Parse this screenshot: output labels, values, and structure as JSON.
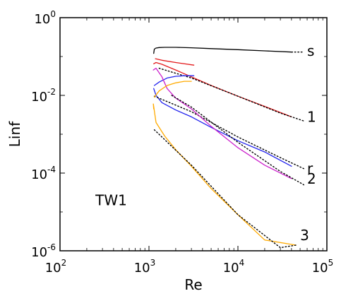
{
  "chart_data": {
    "type": "line",
    "xlabel": "Re",
    "ylabel": "Linf",
    "xscale": "log",
    "yscale": "log",
    "xlim": [
      100,
      100000
    ],
    "ylim": [
      1e-06,
      1
    ],
    "grid": false,
    "x_ticks": [
      {
        "base": "10",
        "exp": "2"
      },
      {
        "base": "10",
        "exp": "3"
      },
      {
        "base": "10",
        "exp": "4"
      },
      {
        "base": "10",
        "exp": "5"
      }
    ],
    "y_ticks": [
      {
        "base": "10",
        "exp": "-6"
      },
      {
        "base": "10",
        "exp": "-4"
      },
      {
        "base": "10",
        "exp": "-2"
      },
      {
        "base": "10",
        "exp": "0"
      }
    ],
    "annotations": [
      {
        "text": "TW1",
        "x": 250,
        "y": 2e-05
      },
      {
        "text": "s",
        "x": 60000,
        "y": 0.14
      },
      {
        "text": "1",
        "x": 60000,
        "y": 0.0028
      },
      {
        "text": "r",
        "x": 60000,
        "y": 0.00013
      },
      {
        "text": "2",
        "x": 60000,
        "y": 7.08e-05
      },
      {
        "text": "3",
        "x": 50000,
        "y": 2.5e-06
      }
    ],
    "series": [
      {
        "color": "#000000",
        "style": "solid",
        "x": [
          1130,
          1150,
          1200,
          1300,
          1500,
          2000,
          3000,
          5000,
          10000,
          20000,
          40000
        ],
        "y": [
          0.12,
          0.155,
          0.165,
          0.17,
          0.172,
          0.172,
          0.168,
          0.16,
          0.15,
          0.14,
          0.13
        ]
      },
      {
        "color": "#000000",
        "style": "dotted",
        "x": [
          40000,
          55000
        ],
        "y": [
          0.13,
          0.13
        ]
      },
      {
        "color": "#e31a1c",
        "style": "solid",
        "x": [
          1180,
          1400,
          2000,
          3200
        ],
        "y": [
          0.088,
          0.08,
          0.07,
          0.06
        ]
      },
      {
        "color": "#e31a1c",
        "style": "solid",
        "x": [
          1130,
          1200,
          1400,
          2000,
          3000,
          5000,
          10000,
          20000,
          40000
        ],
        "y": [
          0.065,
          0.07,
          0.063,
          0.045,
          0.03,
          0.018,
          0.0095,
          0.0052,
          0.0028
        ]
      },
      {
        "color": "#000000",
        "style": "dotted",
        "x": [
          1300,
          3000,
          10000,
          30000,
          55000
        ],
        "y": [
          0.05,
          0.028,
          0.0095,
          0.0035,
          0.0022
        ]
      },
      {
        "color": "#2222ee",
        "style": "solid",
        "x": [
          1150,
          1300,
          1600,
          2000,
          2500,
          3200
        ],
        "y": [
          0.018,
          0.022,
          0.028,
          0.031,
          0.032,
          0.032
        ]
      },
      {
        "color": "#2222ee",
        "style": "solid",
        "x": [
          1130,
          1200,
          1400,
          2000,
          3000,
          5000,
          10000,
          20000,
          40000
        ],
        "y": [
          0.015,
          0.01,
          0.0065,
          0.0042,
          0.0028,
          0.0015,
          0.00068,
          0.00035,
          0.00015
        ]
      },
      {
        "color": "#000000",
        "style": "dotted",
        "x": [
          1150,
          3000,
          10000,
          30000,
          55000
        ],
        "y": [
          0.0095,
          0.0038,
          0.00085,
          0.00025,
          0.00013
        ]
      },
      {
        "color": "#cc22cc",
        "style": "solid",
        "x": [
          1120,
          1200,
          1400,
          1600,
          2000,
          3000,
          5000,
          10000,
          20000,
          40000
        ],
        "y": [
          0.045,
          0.05,
          0.03,
          0.015,
          0.0085,
          0.0045,
          0.0016,
          0.00045,
          0.00016,
          7.2e-05
        ]
      },
      {
        "color": "#000000",
        "style": "dotted",
        "x": [
          1800,
          3000,
          10000,
          30000,
          55000
        ],
        "y": [
          0.01,
          0.005,
          0.00062,
          0.00011,
          5e-05
        ]
      },
      {
        "color": "#ffaa00",
        "style": "solid",
        "x": [
          1150,
          1300,
          1600,
          2000,
          2500,
          3000
        ],
        "y": [
          0.009,
          0.013,
          0.018,
          0.021,
          0.023,
          0.023
        ]
      },
      {
        "color": "#ffaa00",
        "style": "solid",
        "x": [
          1130,
          1120,
          1200,
          1500,
          2000,
          3000,
          5000,
          10000,
          20000,
          45000
        ],
        "y": [
          0.0045,
          0.006,
          0.002,
          0.0009,
          0.0004,
          0.00015,
          4e-05,
          8.5e-06,
          1.9e-06,
          1.4e-06
        ]
      },
      {
        "color": "#000000",
        "style": "dotted",
        "x": [
          1150,
          3000,
          10000,
          30000,
          45000
        ],
        "y": [
          0.0013,
          0.00016,
          8.5e-06,
          1.2e-06,
          1.4e-06
        ]
      }
    ]
  }
}
